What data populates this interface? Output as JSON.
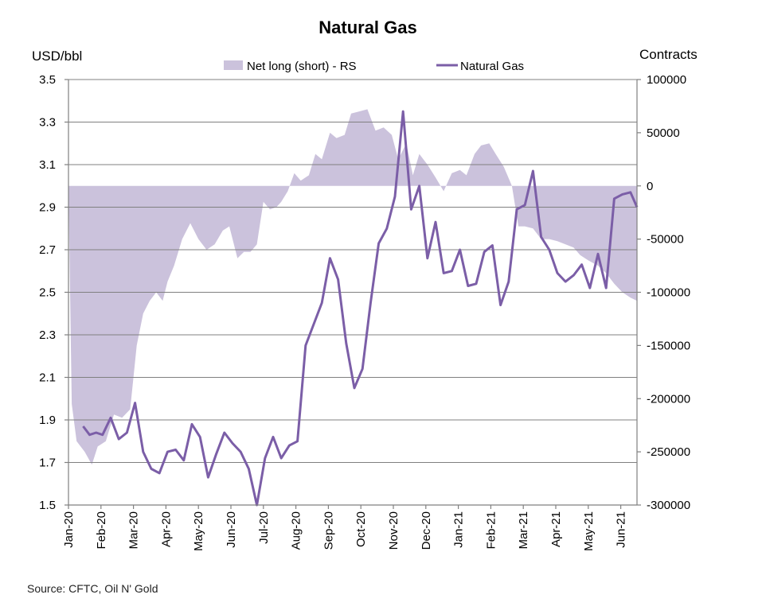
{
  "chart_data": {
    "type": "line",
    "title": "Natural Gas",
    "y_left_label": "USD/bbl",
    "y_right_label": "Contracts",
    "y_left_range": [
      1.5,
      3.5
    ],
    "y_right_range": [
      -300000,
      100000
    ],
    "y_left_ticks": [
      "3.5",
      "3.3",
      "3.1",
      "2.9",
      "2.7",
      "2.5",
      "2.3",
      "2.1",
      "1.9",
      "1.7",
      "1.5"
    ],
    "y_right_ticks": [
      "100000",
      "50000",
      "0",
      "-50000",
      "-100000",
      "-150000",
      "-200000",
      "-250000",
      "-300000"
    ],
    "x_range": [
      0,
      17.5
    ],
    "x_ticks": [
      "Jan-20",
      "Feb-20",
      "Mar-20",
      "Apr-20",
      "May-20",
      "Jun-20",
      "Jul-20",
      "Aug-20",
      "Sep-20",
      "Oct-20",
      "Nov-20",
      "Dec-20",
      "Jan-21",
      "Feb-21",
      "Mar-21",
      "Apr-21",
      "May-21",
      "Jun-21"
    ],
    "legend": [
      "Net long (short) - RS",
      "Natural Gas"
    ],
    "colors": {
      "area": "#cbc2dc",
      "line": "#7b5ea7",
      "grid": "#808080"
    },
    "series": [
      {
        "name": "Net long (short) - RS",
        "axis": "right",
        "kind": "area",
        "x": [
          0,
          0.1,
          0.25,
          0.5,
          0.72,
          0.9,
          1.15,
          1.4,
          1.65,
          1.9,
          2.1,
          2.3,
          2.5,
          2.7,
          2.9,
          3.05,
          3.25,
          3.5,
          3.75,
          4.0,
          4.25,
          4.5,
          4.75,
          4.95,
          5.2,
          5.4,
          5.6,
          5.8,
          6.0,
          6.2,
          6.4,
          6.55,
          6.75,
          6.95,
          7.15,
          7.4,
          7.6,
          7.8,
          8.05,
          8.25,
          8.5,
          8.7,
          8.95,
          9.2,
          9.45,
          9.7,
          9.95,
          10.15,
          10.4,
          10.6,
          10.8,
          11.05,
          11.3,
          11.55,
          11.8,
          12.05,
          12.25,
          12.5,
          12.7,
          12.95,
          13.15,
          13.4,
          13.65,
          13.85,
          14.05,
          14.3,
          14.55,
          14.8,
          15.05,
          15.3,
          15.55,
          15.75,
          16.0,
          16.3,
          16.55,
          16.8,
          17.05,
          17.3,
          17.5
        ],
        "values": [
          0,
          -205000,
          -240000,
          -250000,
          -262000,
          -245000,
          -240000,
          -215000,
          -218000,
          -210000,
          -150000,
          -120000,
          -108000,
          -100000,
          -108000,
          -90000,
          -75000,
          -50000,
          -35000,
          -50000,
          -60000,
          -55000,
          -42000,
          -38000,
          -68000,
          -62000,
          -62000,
          -55000,
          -15000,
          -22000,
          -20000,
          -15000,
          -5000,
          12000,
          5000,
          10000,
          30000,
          25000,
          50000,
          45000,
          48000,
          68000,
          70000,
          72000,
          52000,
          55000,
          48000,
          25000,
          40000,
          10000,
          30000,
          20000,
          8000,
          -5000,
          12000,
          15000,
          10000,
          30000,
          38000,
          40000,
          30000,
          18000,
          0,
          -38000,
          -38000,
          -40000,
          -50000,
          -50000,
          -52000,
          -55000,
          -58000,
          -65000,
          -70000,
          -75000,
          -82000,
          -92000,
          -100000,
          -105000,
          -108000
        ]
      },
      {
        "name": "Natural Gas",
        "axis": "left",
        "kind": "line",
        "x": [
          0.45,
          0.65,
          0.85,
          1.05,
          1.3,
          1.55,
          1.8,
          2.05,
          2.3,
          2.55,
          2.8,
          3.05,
          3.3,
          3.55,
          3.8,
          4.05,
          4.3,
          4.55,
          4.8,
          5.05,
          5.3,
          5.55,
          5.8,
          6.05,
          6.3,
          6.55,
          6.8,
          7.05,
          7.3,
          7.55,
          7.8,
          8.05,
          8.3,
          8.55,
          8.8,
          9.05,
          9.3,
          9.55,
          9.8,
          10.05,
          10.3,
          10.55,
          10.8,
          11.05,
          11.3,
          11.55,
          11.8,
          12.05,
          12.3,
          12.55,
          12.8,
          13.05,
          13.3,
          13.55,
          13.8,
          14.05,
          14.3,
          14.55,
          14.8,
          15.05,
          15.3,
          15.55,
          15.8,
          16.05,
          16.3,
          16.55,
          16.8,
          17.05,
          17.3,
          17.5
        ],
        "values": [
          1.87,
          1.83,
          1.84,
          1.83,
          1.91,
          1.81,
          1.84,
          1.98,
          1.75,
          1.67,
          1.65,
          1.75,
          1.76,
          1.71,
          1.88,
          1.82,
          1.63,
          1.74,
          1.84,
          1.79,
          1.75,
          1.67,
          1.5,
          1.72,
          1.82,
          1.72,
          1.78,
          1.8,
          2.25,
          2.35,
          2.45,
          2.66,
          2.56,
          2.26,
          2.05,
          2.14,
          2.45,
          2.73,
          2.8,
          2.95,
          3.35,
          2.89,
          3.0,
          2.66,
          2.83,
          2.59,
          2.6,
          2.7,
          2.53,
          2.54,
          2.69,
          2.72,
          2.44,
          2.55,
          2.89,
          2.91,
          3.07,
          2.76,
          2.7,
          2.59,
          2.55,
          2.58,
          2.63,
          2.52,
          2.68,
          2.52,
          2.94,
          2.96,
          2.97,
          2.9
        ]
      }
    ],
    "source": "Source: CFTC, Oil N' Gold"
  }
}
